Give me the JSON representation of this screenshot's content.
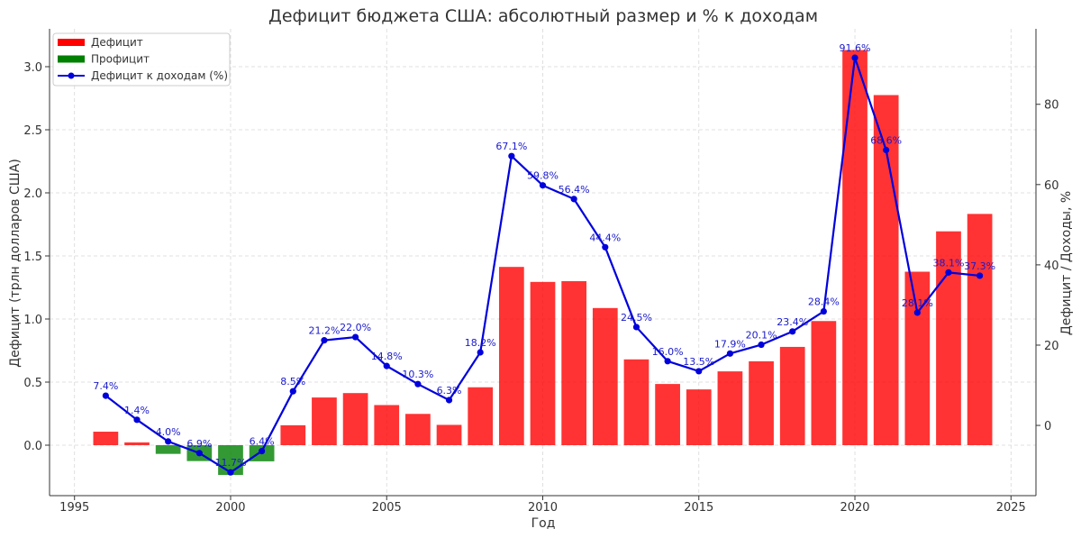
{
  "chart_data": {
    "type": "bar+line",
    "title": "Дефицит бюджета США: абсолютный размер и % к доходам",
    "xlabel": "Год",
    "ylabel_left": "Дефицит (трлн долларов США)",
    "ylabel_right": "Дефицит / Доходы, %",
    "xlim": [
      1994.2,
      2025.8
    ],
    "ylim_left": [
      -0.4,
      3.3
    ],
    "ylim_right": [
      -17.5,
      98.8
    ],
    "x_ticks": [
      1995,
      2000,
      2005,
      2010,
      2015,
      2020,
      2025
    ],
    "x_tick_labels": [
      "1995",
      "2000",
      "2005",
      "2010",
      "2015",
      "2020",
      "2025"
    ],
    "y_left_ticks": [
      0.0,
      0.5,
      1.0,
      1.5,
      2.0,
      2.5,
      3.0
    ],
    "y_left_tick_labels": [
      "0.0",
      "0.5",
      "1.0",
      "1.5",
      "2.0",
      "2.5",
      "3.0"
    ],
    "y_right_ticks": [
      0,
      20,
      40,
      60,
      80
    ],
    "y_right_tick_labels": [
      "0",
      "20",
      "40",
      "60",
      "80"
    ],
    "grid": true,
    "legend_position": "top-left",
    "legend": [
      {
        "label": "Дефицит",
        "kind": "bar",
        "color": "#ff0000"
      },
      {
        "label": "Профицит",
        "kind": "bar",
        "color": "#008000"
      },
      {
        "label": "Дефицит к доходам (%)",
        "kind": "line",
        "color": "#0000dd"
      }
    ],
    "colors": {
      "deficit": "#ff0000",
      "surplus": "#008000",
      "line": "#0000dd"
    },
    "years": [
      1996,
      1997,
      1998,
      1999,
      2000,
      2001,
      2002,
      2003,
      2004,
      2005,
      2006,
      2007,
      2008,
      2009,
      2010,
      2011,
      2012,
      2013,
      2014,
      2015,
      2016,
      2017,
      2018,
      2019,
      2020,
      2021,
      2022,
      2023,
      2024
    ],
    "bar_values": [
      0.107,
      0.022,
      -0.069,
      -0.126,
      -0.236,
      -0.128,
      0.158,
      0.378,
      0.413,
      0.318,
      0.248,
      0.161,
      0.459,
      1.413,
      1.294,
      1.3,
      1.087,
      0.68,
      0.485,
      0.442,
      0.585,
      0.665,
      0.779,
      0.984,
      3.132,
      2.775,
      1.375,
      1.695,
      1.833
    ],
    "line_values": [
      7.4,
      1.4,
      -4.0,
      -6.9,
      -11.7,
      -6.4,
      8.5,
      21.2,
      22.0,
      14.8,
      10.3,
      6.3,
      18.2,
      67.1,
      59.8,
      56.4,
      44.4,
      24.5,
      16.0,
      13.5,
      17.9,
      20.1,
      23.4,
      28.4,
      91.6,
      68.6,
      28.1,
      38.1,
      37.3
    ],
    "line_labels": [
      "7.4%",
      "1.4%",
      "4.0%",
      "6.9%",
      "11.7%",
      "6.4%",
      "8.5%",
      "21.2%",
      "22.0%",
      "14.8%",
      "10.3%",
      "6.3%",
      "18.2%",
      "67.1%",
      "59.8%",
      "56.4%",
      "44.4%",
      "24.5%",
      "16.0%",
      "13.5%",
      "17.9%",
      "20.1%",
      "23.4%",
      "28.4%",
      "91.6%",
      "68.6%",
      "28.1%",
      "38.1%",
      "37.3%"
    ]
  }
}
